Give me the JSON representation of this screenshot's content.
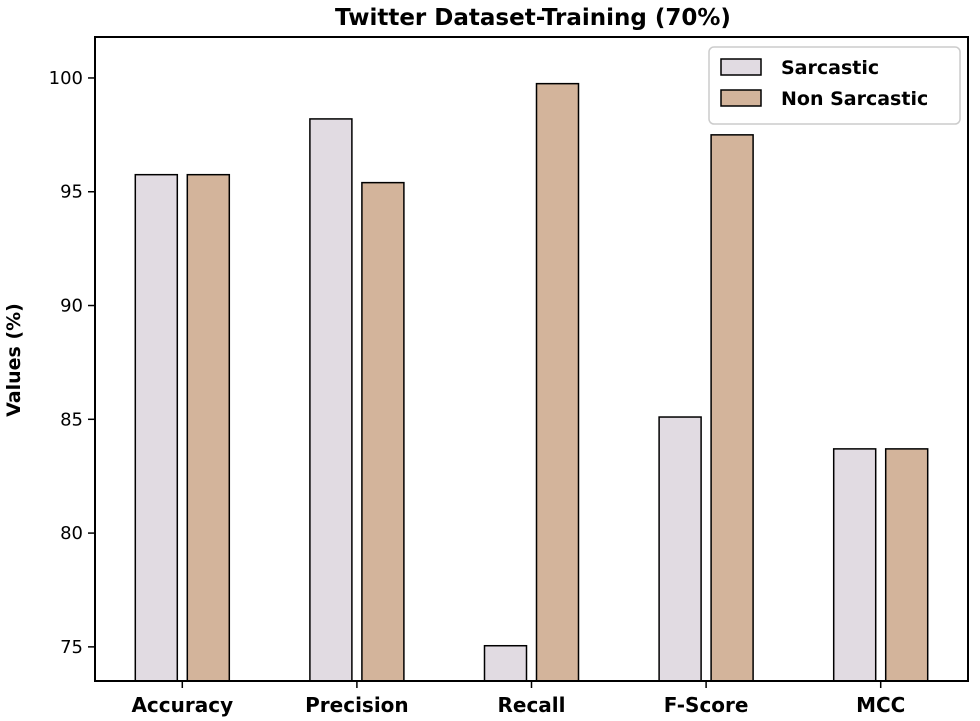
{
  "chart_data": {
    "type": "bar",
    "title": "Twitter Dataset-Training (70%)",
    "xlabel": "",
    "ylabel": "Values (%)",
    "categories": [
      "Accuracy",
      "Precision",
      "Recall",
      "F-Score",
      "MCC"
    ],
    "series": [
      {
        "name": "Sarcastic",
        "values": [
          95.75,
          98.2,
          75.05,
          85.1,
          83.7
        ],
        "color": "#e1dbe2"
      },
      {
        "name": "Non Sarcastic",
        "values": [
          95.75,
          95.4,
          99.75,
          97.5,
          83.7
        ],
        "color": "#d3b49b"
      }
    ],
    "ylim": [
      73.5,
      101.8
    ],
    "yticks": [
      75,
      80,
      85,
      90,
      95,
      100
    ],
    "legend": "top-right",
    "grid": false
  }
}
